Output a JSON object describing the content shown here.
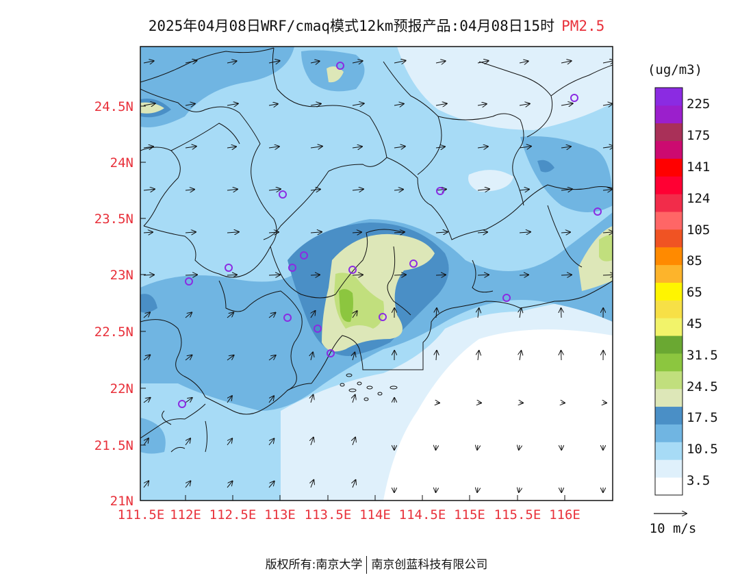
{
  "header": {
    "title_main": "2025年04月08日WRF/cmaq模式12km预报产品:04月08日15时",
    "title_variable": "PM2.5"
  },
  "colorbar": {
    "unit": "(ug/m3)",
    "colors": [
      "#ffffff",
      "#dff0fb",
      "#a7dbf6",
      "#70b5e2",
      "#4a8fc6",
      "#dde7b8",
      "#c1df7d",
      "#8cc63f",
      "#6aa832",
      "#f2f36a",
      "#f7e046",
      "#fff500",
      "#fdb42b",
      "#ff8a00",
      "#f05323",
      "#ff6666",
      "#f22c4a",
      "#ff0033",
      "#ff0000",
      "#cc0a70",
      "#a93058",
      "#9b1fcc",
      "#8b2be2"
    ],
    "labels": [
      "3.5",
      "10.5",
      "17.5",
      "24.5",
      "31.5",
      "45",
      "65",
      "85",
      "105",
      "124",
      "141",
      "175",
      "225"
    ]
  },
  "map": {
    "lat_labels": [
      "24.5N",
      "24N",
      "23.5N",
      "23N",
      "22.5N",
      "22N",
      "21.5N",
      "21N"
    ],
    "lon_labels": [
      "111.5E",
      "112E",
      "112.5E",
      "113E",
      "113.5E",
      "114E",
      "114.5E",
      "115E",
      "115.5E",
      "116E"
    ],
    "wind_legend": "10 m/s"
  },
  "footer": {
    "left": "版权所有:南京大学",
    "right": "南京创蓝科技有限公司"
  }
}
